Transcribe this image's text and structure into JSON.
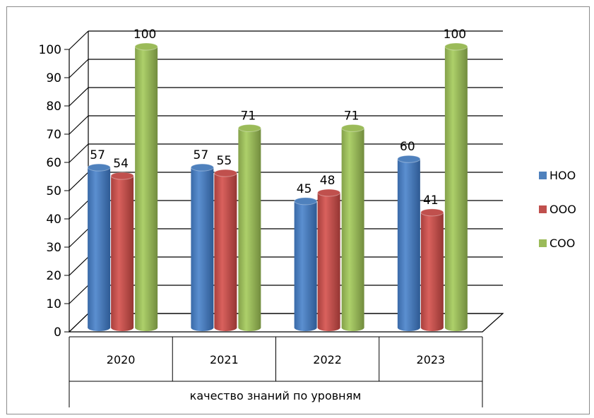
{
  "chart_data": {
    "type": "bar",
    "categories": [
      "2020",
      "2021",
      "2022",
      "2023"
    ],
    "series": [
      {
        "name": "НОО",
        "values": [
          57,
          57,
          45,
          60
        ],
        "color": "#4f81bd"
      },
      {
        "name": "ООО",
        "values": [
          54,
          55,
          48,
          41
        ],
        "color": "#c0504d"
      },
      {
        "name": "СОО",
        "values": [
          100,
          71,
          71,
          100
        ],
        "color": "#9bbb59"
      }
    ],
    "y_ticks": [
      0,
      10,
      20,
      30,
      40,
      50,
      60,
      70,
      80,
      90,
      100
    ],
    "ylim": [
      0,
      100
    ],
    "xlabel": "качество знаний по уровням",
    "ylabel": "",
    "title": "",
    "grid": true,
    "legend_position": "right",
    "style": "3d-cylinder"
  }
}
